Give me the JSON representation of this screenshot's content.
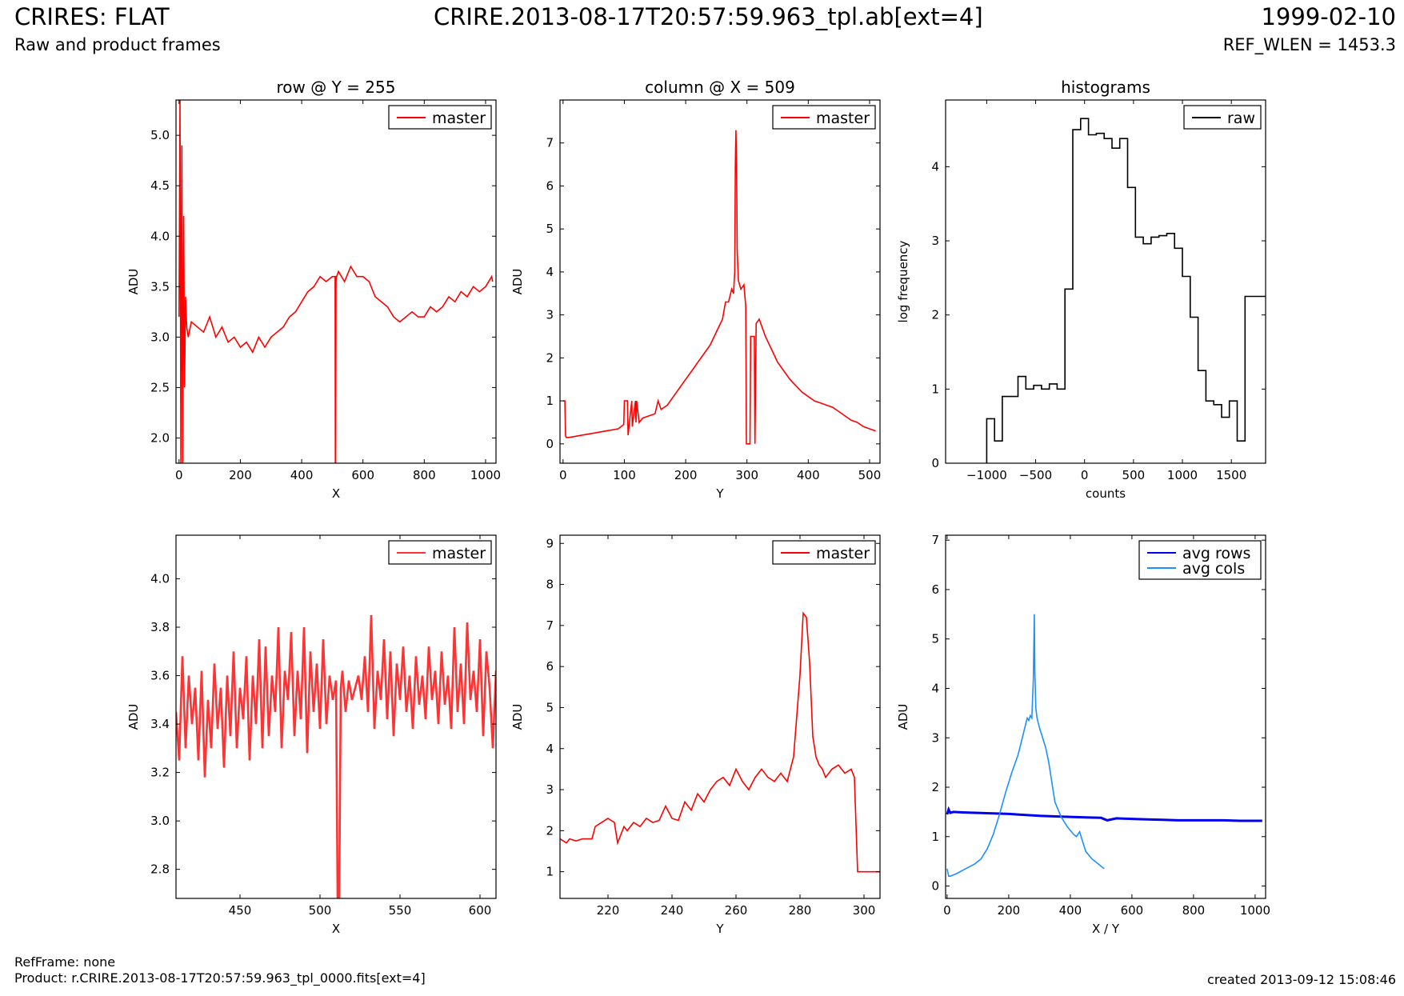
{
  "header": {
    "title": "CRIRES: FLAT",
    "subtitle": "Raw and product frames",
    "file": "CRIRE.2013-08-17T20:57:59.963_tpl.ab[ext=4]",
    "date": "1999-02-10",
    "ref_wlen": "REF_WLEN = 1453.3"
  },
  "footer": {
    "ref_frame": "RefFrame: none",
    "product": "Product: r.CRIRE.2013-08-17T20:57:59.963_tpl_0000.fits[ext=4]",
    "created": "created 2013-09-12 15:08:46"
  },
  "chart_data": [
    {
      "type": "line",
      "title": "row @ Y = 255",
      "xlabel": "X",
      "ylabel": "ADU",
      "xlim": [
        -10,
        1034
      ],
      "ylim": [
        1.75,
        5.35
      ],
      "xticks": [
        0,
        200,
        400,
        600,
        800,
        1000
      ],
      "yticks": [
        2.0,
        2.5,
        3.0,
        3.5,
        4.0,
        4.5,
        5.0
      ],
      "legend": "top-right",
      "series": [
        {
          "name": "master",
          "color": "#ff0000",
          "x": [
            0,
            3,
            6,
            9,
            12,
            15,
            18,
            21,
            25,
            30,
            40,
            60,
            80,
            100,
            120,
            140,
            160,
            180,
            200,
            220,
            240,
            260,
            280,
            300,
            320,
            340,
            360,
            380,
            400,
            420,
            440,
            460,
            480,
            500,
            509,
            510,
            511,
            512,
            513,
            514,
            520,
            540,
            560,
            580,
            600,
            620,
            640,
            660,
            680,
            700,
            720,
            740,
            760,
            780,
            800,
            820,
            840,
            860,
            880,
            900,
            920,
            940,
            960,
            980,
            1000,
            1020,
            1023
          ],
          "y": [
            3.2,
            5.35,
            1.75,
            4.9,
            1.75,
            4.2,
            2.5,
            3.4,
            3.1,
            3.0,
            3.15,
            3.1,
            3.05,
            3.2,
            3.0,
            3.1,
            2.95,
            3.0,
            2.9,
            2.95,
            2.85,
            3.0,
            2.9,
            3.0,
            3.05,
            3.1,
            3.2,
            3.25,
            3.35,
            3.45,
            3.5,
            3.6,
            3.55,
            3.6,
            3.6,
            1.75,
            1.75,
            3.55,
            3.6,
            3.6,
            3.65,
            3.55,
            3.7,
            3.6,
            3.6,
            3.55,
            3.4,
            3.35,
            3.3,
            3.2,
            3.15,
            3.2,
            3.25,
            3.2,
            3.2,
            3.3,
            3.25,
            3.3,
            3.4,
            3.35,
            3.45,
            3.4,
            3.5,
            3.45,
            3.5,
            3.6,
            3.55
          ]
        }
      ]
    },
    {
      "type": "line",
      "title": "column @ X = 509",
      "xlabel": "Y",
      "ylabel": "ADU",
      "xlim": [
        -5,
        517
      ],
      "ylim": [
        -0.45,
        8.0
      ],
      "xticks": [
        0,
        100,
        200,
        300,
        400,
        500
      ],
      "yticks": [
        0,
        1,
        2,
        3,
        4,
        5,
        6,
        7
      ],
      "legend": "top-right",
      "series": [
        {
          "name": "master",
          "color": "#ff0000",
          "x": [
            0,
            3,
            4,
            5,
            10,
            30,
            50,
            70,
            90,
            99,
            100,
            105,
            106,
            112,
            113,
            118,
            119,
            120,
            124,
            130,
            150,
            155,
            160,
            170,
            180,
            190,
            200,
            210,
            220,
            230,
            240,
            250,
            260,
            265,
            270,
            275,
            278,
            280,
            281,
            282,
            283,
            284,
            286,
            290,
            295,
            298,
            299,
            305,
            306,
            312,
            313,
            315,
            320,
            325,
            330,
            340,
            350,
            360,
            370,
            380,
            390,
            400,
            410,
            420,
            430,
            440,
            450,
            460,
            470,
            480,
            490,
            500,
            510
          ],
          "y": [
            1.0,
            1.0,
            0.2,
            0.15,
            0.15,
            0.2,
            0.25,
            0.3,
            0.35,
            0.45,
            1.0,
            1.0,
            0.2,
            1.0,
            0.4,
            1.0,
            0.5,
            1.0,
            0.5,
            0.6,
            0.7,
            1.0,
            0.8,
            0.9,
            1.1,
            1.3,
            1.5,
            1.7,
            1.9,
            2.1,
            2.3,
            2.6,
            2.9,
            3.3,
            3.3,
            3.6,
            3.5,
            4.0,
            6.5,
            7.3,
            6.5,
            4.5,
            3.8,
            3.6,
            3.7,
            3.2,
            0.0,
            0.0,
            2.5,
            2.5,
            0.0,
            2.8,
            2.9,
            2.7,
            2.5,
            2.2,
            1.9,
            1.7,
            1.5,
            1.35,
            1.2,
            1.1,
            1.0,
            0.95,
            0.9,
            0.85,
            0.75,
            0.65,
            0.55,
            0.5,
            0.4,
            0.35,
            0.3
          ]
        }
      ]
    },
    {
      "type": "line",
      "title": "histograms",
      "xlabel": "counts",
      "ylabel": "log frequency",
      "xlim": [
        -1420,
        1850
      ],
      "ylim": [
        0,
        4.9
      ],
      "xticks": [
        -1000,
        -500,
        0,
        500,
        1000,
        1500
      ],
      "yticks": [
        0,
        1,
        2,
        3,
        4
      ],
      "legend": "top-right",
      "series": [
        {
          "name": "raw",
          "color": "#000000",
          "x": [
            -1000,
            -1000,
            -920,
            -920,
            -840,
            -840,
            -760,
            -760,
            -680,
            -680,
            -600,
            -600,
            -520,
            -520,
            -440,
            -440,
            -360,
            -360,
            -280,
            -280,
            -200,
            -200,
            -120,
            -120,
            -40,
            -40,
            40,
            40,
            120,
            120,
            200,
            200,
            280,
            280,
            360,
            360,
            440,
            440,
            520,
            520,
            600,
            600,
            680,
            680,
            760,
            760,
            840,
            840,
            920,
            920,
            1000,
            1000,
            1080,
            1080,
            1160,
            1160,
            1240,
            1240,
            1320,
            1320,
            1400,
            1400,
            1480,
            1480,
            1560,
            1560,
            1640,
            1640,
            1720,
            1720,
            1800,
            1800,
            1850
          ],
          "y": [
            0,
            0.6,
            0.6,
            0.3,
            0.3,
            0.9,
            0.9,
            0.9,
            0.9,
            1.17,
            1.17,
            1.0,
            1.0,
            1.05,
            1.05,
            1.0,
            1.0,
            1.07,
            1.07,
            1.0,
            1.0,
            2.35,
            2.35,
            4.5,
            4.5,
            4.65,
            4.65,
            4.43,
            4.43,
            4.45,
            4.45,
            4.38,
            4.38,
            4.25,
            4.25,
            4.38,
            4.38,
            3.72,
            3.72,
            3.05,
            3.05,
            2.96,
            2.96,
            3.05,
            3.05,
            3.07,
            3.07,
            3.1,
            3.1,
            2.9,
            2.9,
            2.52,
            2.52,
            1.97,
            1.97,
            1.25,
            1.25,
            0.84,
            0.84,
            0.79,
            0.79,
            0.62,
            0.62,
            0.84,
            0.84,
            0.3,
            0.3,
            2.25,
            2.25,
            2.25,
            2.25,
            2.25,
            2.25
          ]
        }
      ]
    },
    {
      "type": "line",
      "title": "",
      "xlabel": "X",
      "ylabel": "ADU",
      "xlim": [
        410,
        610
      ],
      "ylim": [
        2.68,
        4.18
      ],
      "xticks": [
        450,
        500,
        550,
        600
      ],
      "yticks": [
        2.8,
        3.0,
        3.2,
        3.4,
        3.6,
        3.8,
        4.0
      ],
      "legend": "top-right",
      "series": [
        {
          "name": "master",
          "color": "#ff3333",
          "x": [
            410,
            412,
            414,
            416,
            418,
            420,
            422,
            424,
            426,
            428,
            430,
            432,
            434,
            436,
            438,
            440,
            442,
            444,
            446,
            448,
            450,
            452,
            454,
            456,
            458,
            460,
            462,
            464,
            466,
            468,
            470,
            472,
            474,
            476,
            478,
            480,
            482,
            484,
            486,
            488,
            490,
            492,
            494,
            496,
            498,
            500,
            502,
            504,
            506,
            508,
            510,
            511,
            512,
            513,
            514,
            516,
            518,
            520,
            522,
            524,
            526,
            528,
            530,
            532,
            534,
            536,
            538,
            540,
            542,
            544,
            546,
            548,
            550,
            552,
            554,
            556,
            558,
            560,
            562,
            564,
            566,
            568,
            570,
            572,
            574,
            576,
            578,
            580,
            582,
            584,
            586,
            588,
            590,
            592,
            594,
            596,
            598,
            600,
            602,
            604,
            606,
            608,
            610
          ],
          "y": [
            3.45,
            3.25,
            3.68,
            3.3,
            3.6,
            3.4,
            3.55,
            3.25,
            3.62,
            3.18,
            3.5,
            3.3,
            3.65,
            3.38,
            3.55,
            3.22,
            3.6,
            3.35,
            3.7,
            3.3,
            3.55,
            3.42,
            3.68,
            3.25,
            3.6,
            3.4,
            3.75,
            3.3,
            3.72,
            3.35,
            3.6,
            3.45,
            3.8,
            3.3,
            3.62,
            3.5,
            3.78,
            3.35,
            3.62,
            3.42,
            3.8,
            3.28,
            3.7,
            3.45,
            3.65,
            3.38,
            3.75,
            3.4,
            3.6,
            3.5,
            3.58,
            2.68,
            2.68,
            3.55,
            3.62,
            3.45,
            3.58,
            3.5,
            3.55,
            3.6,
            3.5,
            3.68,
            3.45,
            3.85,
            3.38,
            3.62,
            3.5,
            3.75,
            3.42,
            3.7,
            3.35,
            3.65,
            3.5,
            3.72,
            3.45,
            3.6,
            3.38,
            3.68,
            3.48,
            3.6,
            3.42,
            3.72,
            3.5,
            3.62,
            3.4,
            3.7,
            3.48,
            3.6,
            3.38,
            3.8,
            3.45,
            3.65,
            3.4,
            3.82,
            3.5,
            3.62,
            3.45,
            3.75,
            3.35,
            3.7,
            3.55,
            3.3,
            3.62
          ]
        }
      ]
    },
    {
      "type": "line",
      "title": "",
      "xlabel": "Y",
      "ylabel": "ADU",
      "xlim": [
        205,
        305
      ],
      "ylim": [
        0.35,
        9.2
      ],
      "xticks": [
        220,
        240,
        260,
        280,
        300
      ],
      "yticks": [
        1,
        2,
        3,
        4,
        5,
        6,
        7,
        8,
        9
      ],
      "legend": "top-right",
      "series": [
        {
          "name": "master",
          "color": "#ff0000",
          "x": [
            205,
            207,
            208,
            210,
            212,
            215,
            216,
            218,
            220,
            222,
            223,
            225,
            226,
            228,
            230,
            232,
            234,
            236,
            238,
            240,
            242,
            244,
            246,
            248,
            250,
            252,
            254,
            256,
            258,
            260,
            262,
            264,
            266,
            268,
            270,
            272,
            274,
            276,
            278,
            279,
            280,
            281,
            282,
            283,
            284,
            285,
            286,
            287,
            288,
            290,
            292,
            294,
            296,
            297,
            298,
            300,
            302,
            305
          ],
          "y": [
            1.8,
            1.7,
            1.8,
            1.75,
            1.8,
            1.8,
            2.1,
            2.2,
            2.3,
            2.2,
            1.7,
            2.1,
            2.0,
            2.2,
            2.1,
            2.3,
            2.2,
            2.25,
            2.6,
            2.3,
            2.25,
            2.7,
            2.5,
            2.9,
            2.7,
            3.0,
            3.2,
            3.3,
            3.1,
            3.5,
            3.2,
            3.0,
            3.3,
            3.5,
            3.3,
            3.2,
            3.4,
            3.2,
            3.8,
            4.8,
            5.8,
            7.3,
            7.2,
            6.1,
            4.3,
            3.8,
            3.6,
            3.5,
            3.3,
            3.5,
            3.6,
            3.4,
            3.5,
            3.3,
            1.0,
            1.0,
            1.0,
            1.0
          ]
        }
      ]
    },
    {
      "type": "line",
      "title": "",
      "xlabel": "X / Y",
      "ylabel": "ADU",
      "xlim": [
        -5,
        1034
      ],
      "ylim": [
        -0.25,
        7.1
      ],
      "xticks": [
        0,
        200,
        400,
        600,
        800,
        1000
      ],
      "yticks": [
        0,
        1,
        2,
        3,
        4,
        5,
        6,
        7
      ],
      "legend": "top-right",
      "series": [
        {
          "name": "avg rows",
          "color": "#0000ee",
          "x": [
            0,
            5,
            10,
            20,
            50,
            100,
            150,
            200,
            250,
            300,
            350,
            400,
            450,
            500,
            520,
            550,
            600,
            650,
            700,
            750,
            800,
            850,
            900,
            950,
            1000,
            1023
          ],
          "y": [
            1.45,
            1.55,
            1.48,
            1.5,
            1.49,
            1.48,
            1.47,
            1.46,
            1.44,
            1.42,
            1.41,
            1.4,
            1.39,
            1.38,
            1.33,
            1.37,
            1.36,
            1.35,
            1.34,
            1.33,
            1.33,
            1.33,
            1.33,
            1.32,
            1.32,
            1.32
          ]
        },
        {
          "name": "avg cols",
          "color": "#1e8fff",
          "x": [
            0,
            5,
            10,
            30,
            60,
            90,
            110,
            130,
            150,
            170,
            190,
            210,
            230,
            250,
            260,
            265,
            270,
            275,
            280,
            283,
            285,
            288,
            292,
            300,
            310,
            320,
            330,
            340,
            350,
            370,
            390,
            410,
            420,
            430,
            440,
            450,
            470,
            490,
            500,
            510
          ],
          "y": [
            0.35,
            0.2,
            0.2,
            0.25,
            0.35,
            0.45,
            0.55,
            0.75,
            1.05,
            1.45,
            1.9,
            2.3,
            2.65,
            3.15,
            3.4,
            3.35,
            3.45,
            3.4,
            4.2,
            5.5,
            4.3,
            3.6,
            3.4,
            3.2,
            3.0,
            2.8,
            2.5,
            2.1,
            1.7,
            1.4,
            1.2,
            1.05,
            1.0,
            1.1,
            0.9,
            0.7,
            0.55,
            0.45,
            0.4,
            0.35
          ]
        }
      ]
    }
  ]
}
